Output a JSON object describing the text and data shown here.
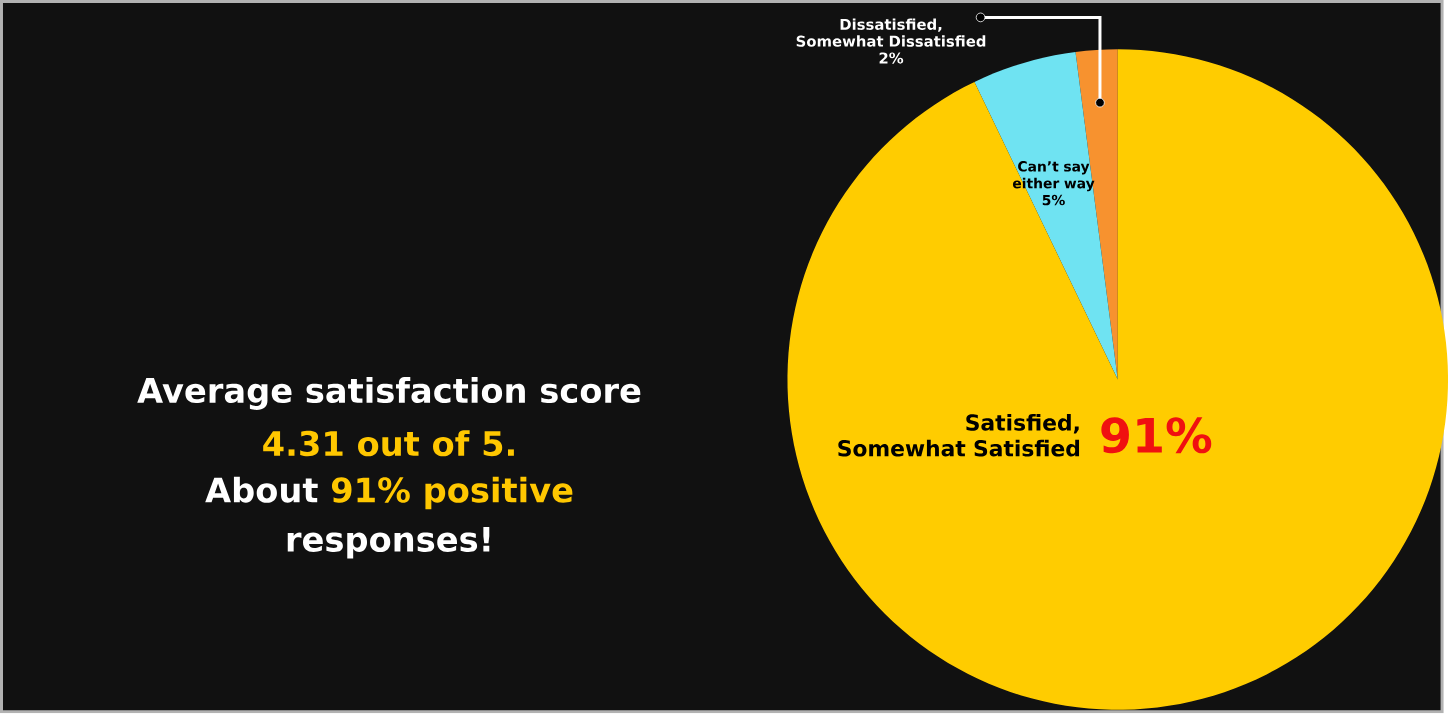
{
  "chart_data": {
    "type": "pie",
    "categories": [
      "Dissatisfied, Somewhat Dissatisfied",
      "Can’t say either way",
      "Satisfied, Somewhat Satisfied"
    ],
    "values": [
      2,
      5,
      91
    ],
    "colors": [
      "#f7922f",
      "#6fe3f2",
      "#ffcc00"
    ],
    "value_labels": [
      "2%",
      "5%",
      "91%"
    ],
    "annotations": [
      "Average satisfaction score",
      "4.31 out of 5.",
      "About",
      "91% positive",
      "responses!"
    ]
  }
}
